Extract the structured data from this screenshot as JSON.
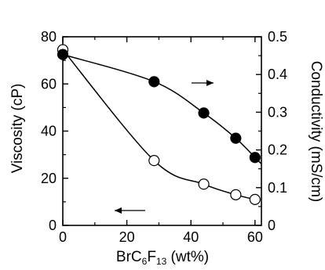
{
  "chart_data": {
    "type": "scatter",
    "xlabel": {
      "prefix": "BrC",
      "sub1": "6",
      "mid": "F",
      "sub2": "13",
      "suffix": " (wt%)"
    },
    "ylabel_left": "Viscosity (cP)",
    "ylabel_right": "Conductivity (mS/cm)",
    "xlim": [
      0,
      62
    ],
    "ylim_left": [
      0,
      80
    ],
    "ylim_right": [
      0,
      0.5
    ],
    "x_ticks": [
      0,
      20,
      40,
      60
    ],
    "x_tick_labels": [
      "0",
      "20",
      "40",
      "60"
    ],
    "y_left_ticks": [
      0,
      20,
      40,
      60,
      80
    ],
    "y_left_tick_labels": [
      "0",
      "20",
      "40",
      "60",
      "80"
    ],
    "y_right_ticks": [
      0,
      0.1,
      0.2,
      0.3,
      0.4,
      0.5
    ],
    "y_right_tick_labels": [
      "0",
      "0.1",
      "0.2",
      "0.3",
      "0.4",
      "0.5"
    ],
    "series": [
      {
        "axis": "left",
        "marker": "open-circle",
        "x": [
          0,
          28.5,
          44,
          54,
          60
        ],
        "y": [
          74.5,
          27.5,
          17.5,
          13,
          11
        ]
      },
      {
        "axis": "right",
        "marker": "filled-circle",
        "x": [
          0,
          28.5,
          44,
          54,
          60
        ],
        "y": [
          0.453,
          0.381,
          0.298,
          0.231,
          0.18
        ]
      }
    ],
    "grid": false
  }
}
